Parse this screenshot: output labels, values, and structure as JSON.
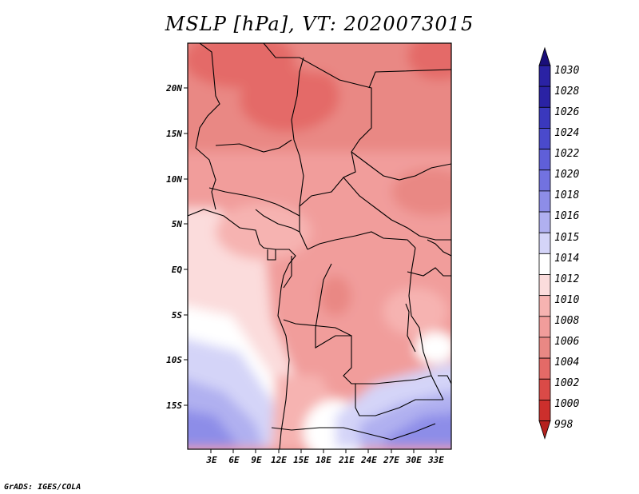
{
  "title": "MSLP [hPa], VT: 2020073015",
  "footer": "GrADS: IGES/COLA",
  "map": {
    "lat_labels": [
      "20N",
      "15N",
      "10N",
      "5N",
      "EQ",
      "5S",
      "10S",
      "15S"
    ],
    "lon_labels": [
      "3E",
      "6E",
      "9E",
      "12E",
      "15E",
      "18E",
      "21E",
      "24E",
      "27E",
      "30E",
      "33E"
    ]
  },
  "colorbar": {
    "levels": [
      "1030",
      "1028",
      "1026",
      "1024",
      "1022",
      "1020",
      "1018",
      "1016",
      "1015",
      "1014",
      "1012",
      "1010",
      "1008",
      "1006",
      "1004",
      "1002",
      "1000",
      "998"
    ],
    "colors": [
      "#1a0e7a",
      "#2a22a4",
      "#3a38bd",
      "#4a4acc",
      "#5f5fd8",
      "#7272e0",
      "#8d8de8",
      "#b0b0f0",
      "#d4d4f8",
      "#ffffff",
      "#fbdcdc",
      "#f6b3b1",
      "#f19d9b",
      "#e98884",
      "#e46a67",
      "#da4a47",
      "#cc2f2c",
      "#b5211e"
    ]
  }
}
